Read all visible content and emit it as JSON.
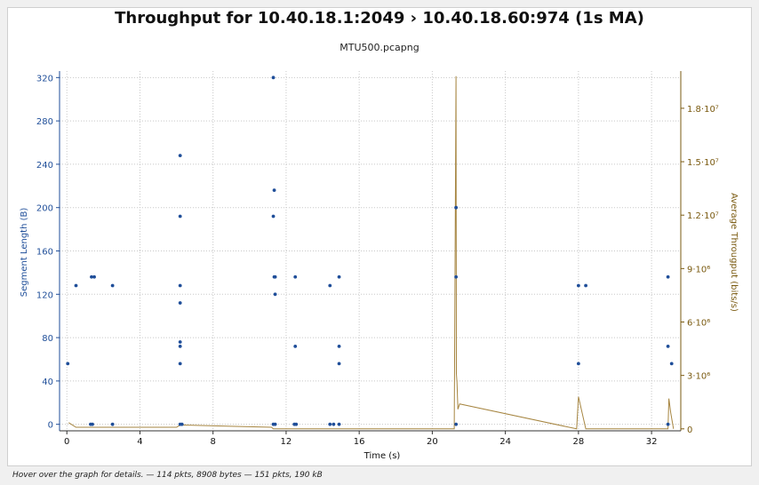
{
  "title": "Throughput for 10.40.18.1:2049   › 10.40.18.60:974 (1s MA)",
  "subtitle": "MTU500.pcapng",
  "status": "Hover over the graph for details. — 114 pkts, 8908 bytes — 151 pkts, 190 kB",
  "colors": {
    "segments": "#1f4e99",
    "throughput": "#a68540",
    "axis_right": "#7a5a10"
  },
  "chart_data": {
    "type": "scatter",
    "title": "Throughput for 10.40.18.1:2049   › 10.40.18.60:974 (1s MA)",
    "subtitle": "MTU500.pcapng",
    "xlabel": "Time (s)",
    "ylabel": "Segment Length (B)",
    "y2label": "Average Througput (bits/s)",
    "xlim": [
      -0.4,
      33.6
    ],
    "ylim": [
      -6,
      326
    ],
    "y2lim": [
      -110000,
      20090000
    ],
    "x_ticks": [
      0,
      4,
      8,
      12,
      16,
      20,
      24,
      28,
      32
    ],
    "y_ticks": [
      0,
      40,
      80,
      120,
      160,
      200,
      240,
      280,
      320
    ],
    "y2_ticks": [
      {
        "value": 0,
        "label": "0"
      },
      {
        "value": 3000000,
        "label": "3·10⁶"
      },
      {
        "value": 6000000,
        "label": "6·10⁶"
      },
      {
        "value": 9000000,
        "label": "9·10⁶"
      },
      {
        "value": 12000000,
        "label": "1.2·10⁷"
      },
      {
        "value": 15000000,
        "label": "1.5·10⁷"
      },
      {
        "value": 18000000,
        "label": "1.8·10⁷"
      }
    ],
    "grid": true,
    "series": [
      {
        "axis": "left",
        "kind": "points",
        "points": [
          [
            0.05,
            56
          ],
          [
            0.5,
            128
          ],
          [
            1.35,
            136
          ],
          [
            1.5,
            136
          ],
          [
            1.3,
            0
          ],
          [
            1.4,
            0
          ],
          [
            2.5,
            128
          ],
          [
            2.5,
            0
          ],
          [
            6.2,
            248
          ],
          [
            6.2,
            192
          ],
          [
            6.2,
            128
          ],
          [
            6.2,
            112
          ],
          [
            6.2,
            76
          ],
          [
            6.2,
            72
          ],
          [
            6.2,
            56
          ],
          [
            6.2,
            0
          ],
          [
            6.3,
            0
          ],
          [
            11.3,
            320
          ],
          [
            11.35,
            216
          ],
          [
            11.3,
            192
          ],
          [
            11.4,
            136
          ],
          [
            11.35,
            136
          ],
          [
            11.4,
            120
          ],
          [
            11.3,
            0
          ],
          [
            11.4,
            0
          ],
          [
            12.5,
            136
          ],
          [
            12.5,
            72
          ],
          [
            12.45,
            0
          ],
          [
            12.55,
            0
          ],
          [
            14.4,
            128
          ],
          [
            14.4,
            0
          ],
          [
            14.6,
            0
          ],
          [
            14.9,
            136
          ],
          [
            14.9,
            72
          ],
          [
            14.9,
            56
          ],
          [
            14.9,
            0
          ],
          [
            21.3,
            200
          ],
          [
            21.3,
            136
          ],
          [
            21.3,
            0
          ],
          [
            28,
            128
          ],
          [
            28,
            56
          ],
          [
            28.4,
            128
          ],
          [
            32.9,
            136
          ],
          [
            32.9,
            72
          ],
          [
            32.9,
            0
          ],
          [
            33.1,
            56
          ]
        ]
      },
      {
        "axis": "right",
        "kind": "line",
        "points": [
          [
            0.1,
            350000
          ],
          [
            0.5,
            90000
          ],
          [
            6,
            90000
          ],
          [
            6.2,
            220000
          ],
          [
            11.2,
            90000
          ],
          [
            11.3,
            0
          ],
          [
            21.2,
            0
          ],
          [
            21.3,
            19800000
          ],
          [
            21.32,
            3100000
          ],
          [
            21.35,
            2600000
          ],
          [
            21.4,
            1100000
          ],
          [
            21.5,
            1400000
          ],
          [
            27.9,
            0
          ],
          [
            28.0,
            1800000
          ],
          [
            28.4,
            0
          ],
          [
            32.9,
            0
          ],
          [
            32.95,
            1700000
          ],
          [
            33.05,
            900000
          ],
          [
            33.2,
            0
          ]
        ]
      }
    ]
  }
}
